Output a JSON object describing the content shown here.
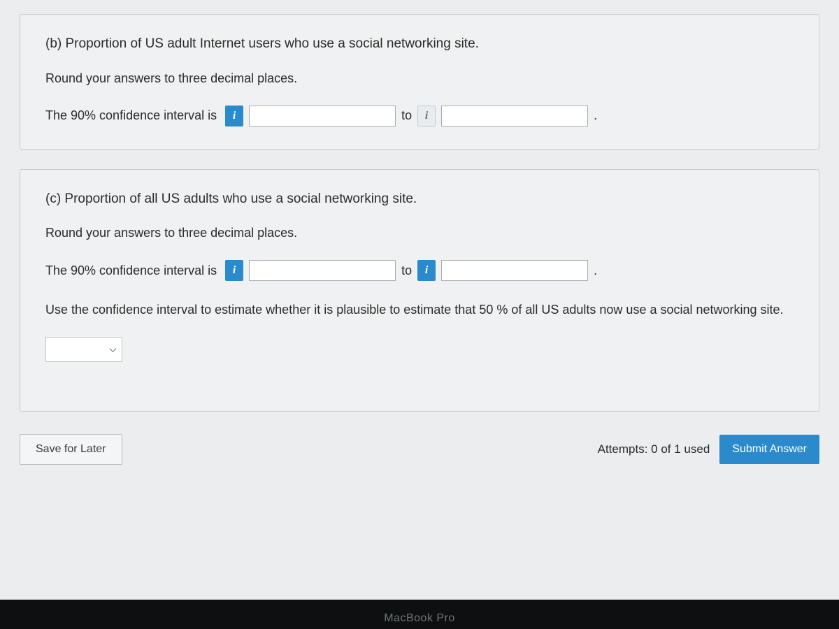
{
  "colors": {
    "page_bg": "#b8bcc0",
    "panel_bg": "#f0f1f2",
    "panel_border": "#c8cbce",
    "text": "#2a2a2a",
    "accent": "#2b8acb",
    "input_border": "#a9adb1",
    "black_bar": "#0e0f10",
    "mac_text": "#6f7578"
  },
  "panel_b": {
    "prompt": "(b) Proportion of US adult Internet users who use a social networking site.",
    "instruction": "Round your answers to three decimal places.",
    "lead": "The 90% confidence interval is",
    "to": "to",
    "period": ".",
    "lower_value": "",
    "upper_value": "",
    "info_glyph": "i"
  },
  "panel_c": {
    "prompt": "(c) Proportion of all US adults who use a social networking site.",
    "instruction": "Round your answers to three decimal places.",
    "lead": "The 90% confidence interval is",
    "to": "to",
    "period": ".",
    "lower_value": "",
    "upper_value": "",
    "info_glyph": "i",
    "follow_up": "Use the confidence interval to estimate whether it is plausible to estimate that 50 %  of all US adults now use a social networking site.",
    "select_value": ""
  },
  "footer": {
    "save_label": "Save for Later",
    "attempts_label": "Attempts: 0 of 1 used",
    "submit_label": "Submit Answer"
  },
  "device": {
    "label": "MacBook Pro"
  }
}
